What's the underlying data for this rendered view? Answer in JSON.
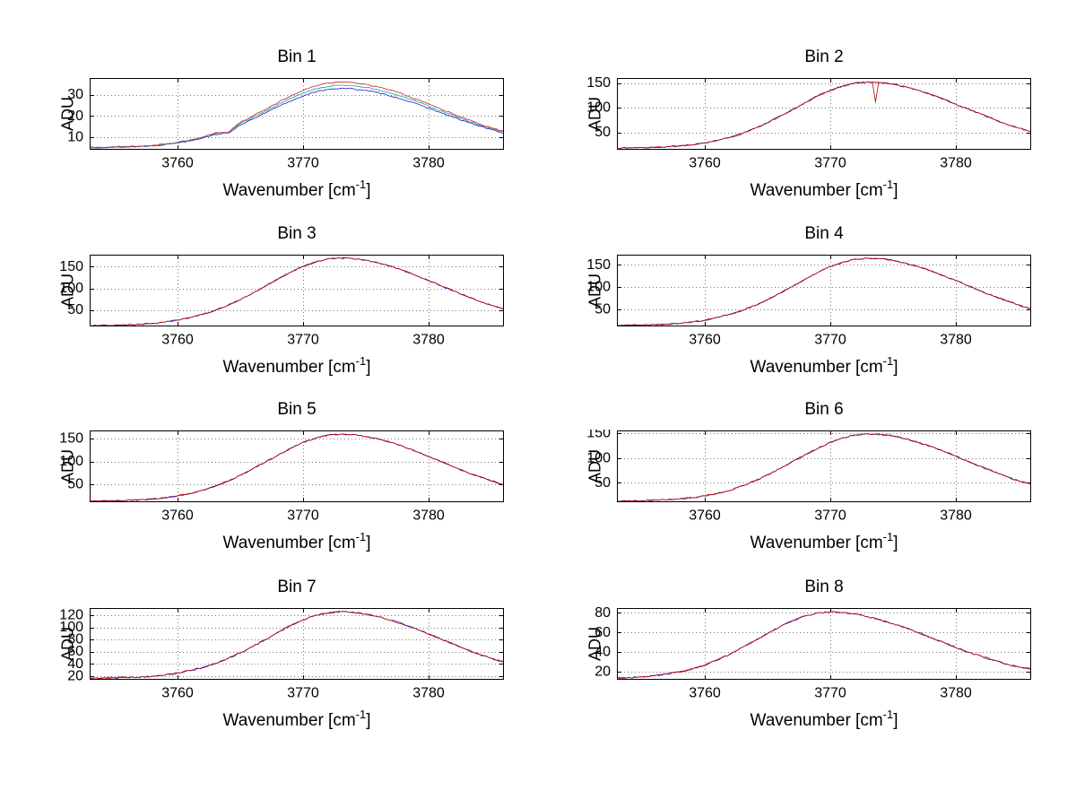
{
  "figure": {
    "background": "#ffffff"
  },
  "labels": {
    "xlabel_prefix": "Wavenumber [cm",
    "xlabel_sup": "-1",
    "xlabel_suffix": "]",
    "ylabel": "ADU"
  },
  "chart_data": [
    {
      "type": "line",
      "title": "Bin 1",
      "xlabel": "Wavenumber [cm^-1]",
      "ylabel": "ADU",
      "x_start": 3753,
      "x_step": 1,
      "x_end": 3786,
      "xlim": [
        3753,
        3786
      ],
      "ylim": [
        4,
        38
      ],
      "xticks": [
        3760,
        3770,
        3780
      ],
      "yticks": [
        10,
        20,
        30
      ],
      "grid": "dotted",
      "noise": 0.35,
      "series": [
        {
          "name": "trace-blue",
          "color": "#2020c0",
          "values": [
            5.0,
            5.1,
            5.2,
            5.3,
            5.6,
            5.9,
            6.5,
            7.3,
            8.3,
            9.6,
            11.3,
            11.8,
            15.8,
            18.5,
            21.4,
            24.4,
            27.1,
            29.5,
            31.4,
            32.7,
            33.1,
            32.9,
            32.1,
            31.0,
            29.5,
            27.8,
            25.8,
            23.7,
            21.5,
            19.3,
            17.3,
            15.3,
            13.5,
            11.9
          ]
        },
        {
          "name": "trace-cyan",
          "color": "#00a8a8",
          "values": [
            5.0,
            5.1,
            5.2,
            5.4,
            5.6,
            6.0,
            6.6,
            7.4,
            8.5,
            9.9,
            11.7,
            12.0,
            16.4,
            19.3,
            22.3,
            25.4,
            28.3,
            30.8,
            32.8,
            34.1,
            34.6,
            34.3,
            33.6,
            32.4,
            30.8,
            29.0,
            26.9,
            24.7,
            22.4,
            20.1,
            17.9,
            15.9,
            14.0,
            12.3
          ]
        },
        {
          "name": "trace-red",
          "color": "#d02020",
          "values": [
            5.1,
            5.2,
            5.3,
            5.4,
            5.7,
            6.1,
            6.7,
            7.6,
            8.7,
            10.1,
            12.0,
            12.2,
            17.0,
            20.0,
            23.2,
            26.4,
            29.5,
            32.1,
            34.2,
            35.6,
            36.1,
            35.8,
            35.0,
            33.8,
            32.2,
            30.2,
            28.0,
            25.7,
            23.3,
            20.9,
            18.6,
            16.4,
            14.4,
            12.7
          ]
        }
      ]
    },
    {
      "type": "line",
      "title": "Bin 2",
      "xlabel": "Wavenumber [cm^-1]",
      "ylabel": "ADU",
      "x_start": 3753,
      "x_step": 1,
      "x_end": 3786,
      "xlim": [
        3753,
        3786
      ],
      "ylim": [
        15,
        160
      ],
      "xticks": [
        3760,
        3770,
        3780
      ],
      "yticks": [
        50,
        100,
        150
      ],
      "grid": "dotted",
      "noise": 1.8,
      "spikes": [
        {
          "x": 3773.6,
          "y": 112
        }
      ],
      "series": [
        {
          "name": "trace-blue",
          "color": "#2020c0",
          "values": [
            18,
            19,
            19,
            20,
            21,
            23,
            25,
            29,
            34,
            40,
            48,
            58,
            70,
            83,
            96,
            110,
            124,
            135,
            144,
            150,
            152,
            151,
            148,
            142,
            135,
            127,
            118,
            107,
            97,
            87,
            77,
            67,
            59,
            51
          ]
        },
        {
          "name": "trace-red",
          "color": "#c00000",
          "values_from": 0
        }
      ]
    },
    {
      "type": "line",
      "title": "Bin 3",
      "xlabel": "Wavenumber [cm^-1]",
      "ylabel": "ADU",
      "x_start": 3753,
      "x_step": 1,
      "x_end": 3786,
      "xlim": [
        3753,
        3786
      ],
      "ylim": [
        12,
        178
      ],
      "xticks": [
        3760,
        3770,
        3780
      ],
      "yticks": [
        50,
        100,
        150
      ],
      "grid": "dotted",
      "noise": 1.8,
      "series": [
        {
          "name": "trace-blue",
          "color": "#2020c0",
          "values": [
            14,
            15,
            15,
            16,
            17,
            19,
            22,
            27,
            32,
            40,
            49,
            61,
            74,
            89,
            105,
            122,
            137,
            151,
            161,
            168,
            170,
            169,
            165,
            159,
            151,
            141,
            130,
            118,
            106,
            94,
            82,
            71,
            61,
            53
          ]
        },
        {
          "name": "trace-red",
          "color": "#c00000",
          "values_from": 0
        }
      ]
    },
    {
      "type": "line",
      "title": "Bin 4",
      "xlabel": "Wavenumber [cm^-1]",
      "ylabel": "ADU",
      "x_start": 3753,
      "x_step": 1,
      "x_end": 3786,
      "xlim": [
        3753,
        3786
      ],
      "ylim": [
        12,
        173
      ],
      "xticks": [
        3760,
        3770,
        3780
      ],
      "yticks": [
        50,
        100,
        150
      ],
      "grid": "dotted",
      "noise": 1.8,
      "series": [
        {
          "name": "trace-blue",
          "color": "#2020c0",
          "values": [
            14,
            15,
            15,
            16,
            17,
            19,
            22,
            26,
            32,
            39,
            48,
            59,
            72,
            87,
            102,
            118,
            133,
            146,
            156,
            163,
            165,
            164,
            160,
            154,
            146,
            137,
            126,
            115,
            103,
            91,
            80,
            70,
            60,
            51
          ]
        },
        {
          "name": "trace-red",
          "color": "#c00000",
          "values_from": 0
        }
      ]
    },
    {
      "type": "line",
      "title": "Bin 5",
      "xlabel": "Wavenumber [cm^-1]",
      "ylabel": "ADU",
      "x_start": 3753,
      "x_step": 1,
      "x_end": 3786,
      "xlim": [
        3753,
        3786
      ],
      "ylim": [
        11,
        168
      ],
      "xticks": [
        3760,
        3770,
        3780
      ],
      "yticks": [
        50,
        100,
        150
      ],
      "grid": "dotted",
      "noise": 1.8,
      "series": [
        {
          "name": "trace-blue",
          "color": "#2020c0",
          "values": [
            13,
            14,
            14,
            15,
            16,
            18,
            21,
            25,
            30,
            37,
            46,
            57,
            70,
            84,
            99,
            114,
            129,
            142,
            151,
            158,
            160,
            159,
            155,
            149,
            142,
            133,
            122,
            111,
            100,
            88,
            77,
            67,
            58,
            49
          ]
        },
        {
          "name": "trace-red",
          "color": "#c00000",
          "values_from": 0
        }
      ]
    },
    {
      "type": "line",
      "title": "Bin 6",
      "xlabel": "Wavenumber [cm^-1]",
      "ylabel": "ADU",
      "x_start": 3753,
      "x_step": 1,
      "x_end": 3786,
      "xlim": [
        3753,
        3786
      ],
      "ylim": [
        11,
        156
      ],
      "xticks": [
        3760,
        3770,
        3780
      ],
      "yticks": [
        50,
        100,
        150
      ],
      "grid": "dotted",
      "noise": 1.8,
      "series": [
        {
          "name": "trace-blue",
          "color": "#2020c0",
          "values": [
            13,
            14,
            14,
            15,
            16,
            18,
            20,
            24,
            29,
            35,
            44,
            54,
            66,
            79,
            93,
            107,
            120,
            132,
            141,
            147,
            149,
            148,
            145,
            139,
            132,
            124,
            114,
            104,
            93,
            83,
            73,
            63,
            54,
            47
          ]
        },
        {
          "name": "trace-red",
          "color": "#c00000",
          "values_from": 0
        }
      ]
    },
    {
      "type": "line",
      "title": "Bin 7",
      "xlabel": "Wavenumber [cm^-1]",
      "ylabel": "ADU",
      "x_start": 3753,
      "x_step": 1,
      "x_end": 3786,
      "xlim": [
        3753,
        3786
      ],
      "ylim": [
        14,
        132
      ],
      "xticks": [
        3760,
        3770,
        3780
      ],
      "yticks": [
        20,
        40,
        60,
        80,
        100,
        120
      ],
      "grid": "dotted",
      "noise": 1.6,
      "series": [
        {
          "name": "trace-blue",
          "color": "#2020c0",
          "values": [
            16,
            17,
            17,
            18,
            18,
            20,
            22,
            25,
            29,
            34,
            41,
            49,
            58,
            69,
            80,
            92,
            103,
            112,
            120,
            124,
            126,
            125,
            122,
            118,
            112,
            105,
            98,
            89,
            81,
            72,
            64,
            56,
            49,
            43
          ]
        },
        {
          "name": "trace-red",
          "color": "#c00000",
          "values_from": 0
        }
      ]
    },
    {
      "type": "line",
      "title": "Bin 8",
      "xlabel": "Wavenumber [cm^-1]",
      "ylabel": "ADU",
      "x_start": 3753,
      "x_step": 1,
      "x_end": 3786,
      "xlim": [
        3753,
        3786
      ],
      "ylim": [
        12,
        85
      ],
      "xticks": [
        3760,
        3770,
        3780
      ],
      "yticks": [
        20,
        40,
        60,
        80
      ],
      "grid": "dotted",
      "noise": 1.0,
      "series": [
        {
          "name": "trace-blue",
          "color": "#2020c0",
          "values": [
            14,
            14,
            15,
            16,
            18,
            20,
            23,
            27,
            32,
            38,
            45,
            52,
            59,
            66,
            72,
            77,
            80,
            81,
            80,
            79,
            76,
            73,
            69,
            65,
            60,
            55,
            50,
            45,
            40,
            36,
            32,
            28,
            25,
            23
          ]
        },
        {
          "name": "trace-red",
          "color": "#c00000",
          "values_from": 0
        }
      ]
    }
  ]
}
